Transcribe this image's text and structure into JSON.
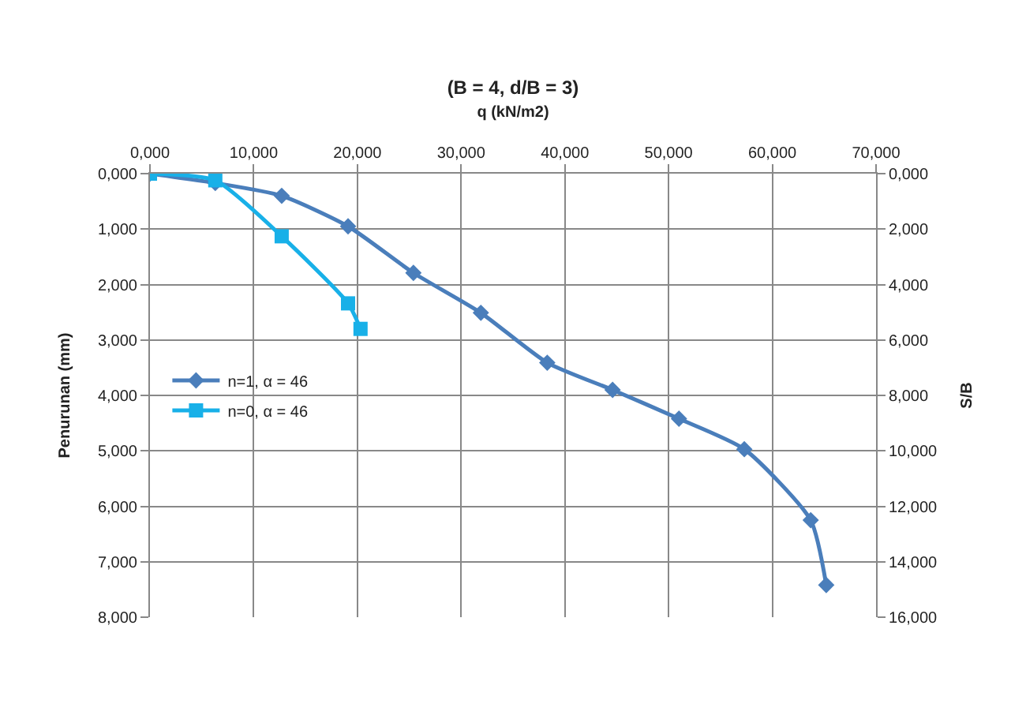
{
  "chart_data": {
    "type": "line",
    "title": "(B = 4, d/B = 3)",
    "xlabel": "q (kN/m2)",
    "ylabel": "Penurunan (mm)",
    "y2label": "S/B",
    "xlim": [
      0,
      70
    ],
    "xticks": [
      {
        "value": 0,
        "label": "0,000"
      },
      {
        "value": 10,
        "label": "10,000"
      },
      {
        "value": 20,
        "label": "20,000"
      },
      {
        "value": 30,
        "label": "30,000"
      },
      {
        "value": 40,
        "label": "40,000"
      },
      {
        "value": 50,
        "label": "50,000"
      },
      {
        "value": 60,
        "label": "60,000"
      },
      {
        "value": 70,
        "label": "70,000"
      }
    ],
    "ylim": [
      8,
      0
    ],
    "yticks": [
      {
        "value": 0,
        "label": "0,000"
      },
      {
        "value": 1,
        "label": "1,000"
      },
      {
        "value": 2,
        "label": "2,000"
      },
      {
        "value": 3,
        "label": "3,000"
      },
      {
        "value": 4,
        "label": "4,000"
      },
      {
        "value": 5,
        "label": "5,000"
      },
      {
        "value": 6,
        "label": "6,000"
      },
      {
        "value": 7,
        "label": "7,000"
      },
      {
        "value": 8,
        "label": "8,000"
      }
    ],
    "y2lim": [
      16,
      0
    ],
    "y2ticks": [
      {
        "value": 0,
        "label": "0,000"
      },
      {
        "value": 2,
        "label": "2,000"
      },
      {
        "value": 4,
        "label": "4,000"
      },
      {
        "value": 6,
        "label": "6,000"
      },
      {
        "value": 8,
        "label": "8,000"
      },
      {
        "value": 10,
        "label": "10,000"
      },
      {
        "value": 12,
        "label": "12,000"
      },
      {
        "value": 14,
        "label": "14,000"
      },
      {
        "value": 16,
        "label": "16,000"
      }
    ],
    "grid": true,
    "legend": "left",
    "line_style": "solid",
    "series": [
      {
        "name": "n=1, α = 46",
        "color": "#4a7ebb",
        "marker": "diamond",
        "x": [
          0,
          6.3,
          12.7,
          19.1,
          25.4,
          31.9,
          38.3,
          44.6,
          51.0,
          57.3,
          63.7,
          65.2
        ],
        "values": [
          0,
          0.17,
          0.4,
          0.95,
          1.79,
          2.51,
          3.41,
          3.9,
          4.42,
          4.97,
          6.25,
          7.42
        ]
      },
      {
        "name": "n=0, α = 46",
        "color": "#18b0e8",
        "marker": "square",
        "x": [
          0,
          6.3,
          12.7,
          19.1,
          20.3
        ],
        "values": [
          0,
          0.12,
          1.13,
          2.34,
          2.8
        ]
      }
    ]
  }
}
